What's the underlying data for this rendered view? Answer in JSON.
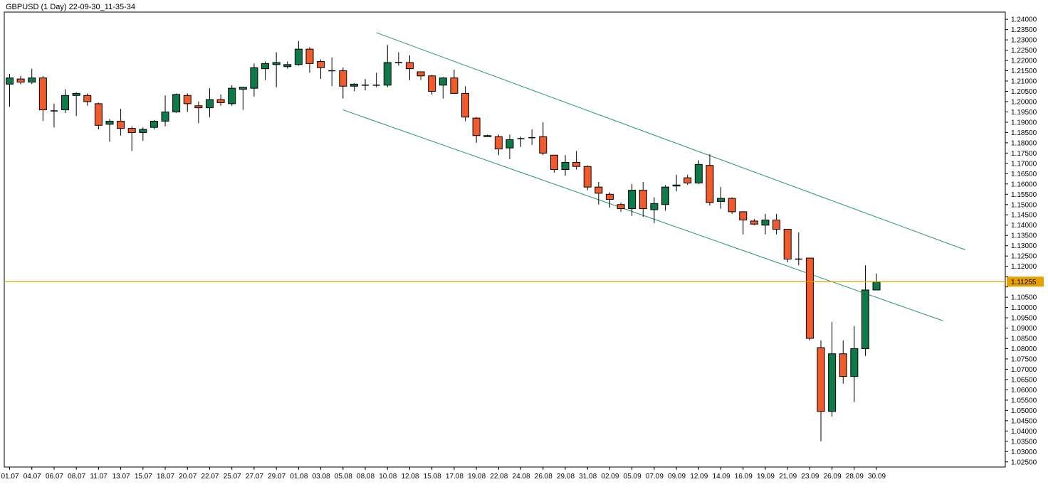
{
  "header": {
    "title": "GBPUSD (1 Day) 22-09-30_11-35-34"
  },
  "colors": {
    "background": "#ffffff",
    "frame": "#000000",
    "bull": "#0d7a4a",
    "bear": "#f15a2b",
    "channel": "#1f9a6a",
    "price_line": "#e6a100",
    "price_label_bg": "#e6a100"
  },
  "chart_data": {
    "type": "candlestick",
    "symbol": "GBPUSD",
    "timeframe": "1 Day",
    "ylim": [
      1.0225,
      1.2435
    ],
    "y_ticks": [
      "1.02500",
      "1.03000",
      "1.03500",
      "1.04000",
      "1.04500",
      "1.05000",
      "1.05500",
      "1.06000",
      "1.06500",
      "1.07000",
      "1.07500",
      "1.08000",
      "1.08500",
      "1.09000",
      "1.09500",
      "1.10000",
      "1.10500",
      "1.11000",
      "1.11500",
      "1.12000",
      "1.12500",
      "1.13000",
      "1.13500",
      "1.14000",
      "1.14500",
      "1.15000",
      "1.15500",
      "1.16000",
      "1.16500",
      "1.17000",
      "1.17500",
      "1.18000",
      "1.18500",
      "1.19000",
      "1.19500",
      "1.20000",
      "1.20500",
      "1.21000",
      "1.21500",
      "1.22000",
      "1.22500",
      "1.23000",
      "1.23500",
      "1.24000"
    ],
    "x_ticks": [
      {
        "index": 0,
        "label": "01.07"
      },
      {
        "index": 2,
        "label": "04.07"
      },
      {
        "index": 4,
        "label": "06.07"
      },
      {
        "index": 6,
        "label": "08.07"
      },
      {
        "index": 8,
        "label": "11.07"
      },
      {
        "index": 10,
        "label": "13.07"
      },
      {
        "index": 12,
        "label": "15.07"
      },
      {
        "index": 14,
        "label": "18.07"
      },
      {
        "index": 16,
        "label": "20.07"
      },
      {
        "index": 18,
        "label": "22.07"
      },
      {
        "index": 20,
        "label": "25.07"
      },
      {
        "index": 22,
        "label": "27.07"
      },
      {
        "index": 24,
        "label": "29.07"
      },
      {
        "index": 26,
        "label": "01.08"
      },
      {
        "index": 28,
        "label": "03.08"
      },
      {
        "index": 30,
        "label": "05.08"
      },
      {
        "index": 32,
        "label": "08.08"
      },
      {
        "index": 34,
        "label": "10.08"
      },
      {
        "index": 36,
        "label": "12.08"
      },
      {
        "index": 38,
        "label": "15.08"
      },
      {
        "index": 40,
        "label": "17.08"
      },
      {
        "index": 42,
        "label": "19.08"
      },
      {
        "index": 44,
        "label": "22.08"
      },
      {
        "index": 46,
        "label": "24.08"
      },
      {
        "index": 48,
        "label": "26.08"
      },
      {
        "index": 50,
        "label": "29.08"
      },
      {
        "index": 52,
        "label": "31.08"
      },
      {
        "index": 54,
        "label": "02.09"
      },
      {
        "index": 56,
        "label": "05.09"
      },
      {
        "index": 58,
        "label": "07.09"
      },
      {
        "index": 60,
        "label": "09.09"
      },
      {
        "index": 62,
        "label": "12.09"
      },
      {
        "index": 64,
        "label": "14.09"
      },
      {
        "index": 66,
        "label": "16.09"
      },
      {
        "index": 68,
        "label": "19.09"
      },
      {
        "index": 70,
        "label": "21.09"
      },
      {
        "index": 72,
        "label": "23.09"
      },
      {
        "index": 74,
        "label": "26.09"
      },
      {
        "index": 76,
        "label": "28.09"
      },
      {
        "index": 78,
        "label": "30.09"
      }
    ],
    "candles": [
      {
        "o": 1.2085,
        "h": 1.2135,
        "l": 1.1975,
        "c": 1.2115
      },
      {
        "o": 1.211,
        "h": 1.2125,
        "l": 1.2085,
        "c": 1.2095
      },
      {
        "o": 1.2095,
        "h": 1.216,
        "l": 1.2085,
        "c": 1.2115
      },
      {
        "o": 1.2115,
        "h": 1.2125,
        "l": 1.1905,
        "c": 1.196
      },
      {
        "o": 1.1955,
        "h": 1.199,
        "l": 1.1875,
        "c": 1.1955
      },
      {
        "o": 1.196,
        "h": 1.206,
        "l": 1.1945,
        "c": 1.203
      },
      {
        "o": 1.203,
        "h": 1.2045,
        "l": 1.193,
        "c": 1.204
      },
      {
        "o": 1.203,
        "h": 1.204,
        "l": 1.198,
        "c": 1.2
      },
      {
        "o": 1.199,
        "h": 1.1995,
        "l": 1.1865,
        "c": 1.1885
      },
      {
        "o": 1.189,
        "h": 1.1915,
        "l": 1.1805,
        "c": 1.1905
      },
      {
        "o": 1.1905,
        "h": 1.1965,
        "l": 1.1835,
        "c": 1.187
      },
      {
        "o": 1.187,
        "h": 1.188,
        "l": 1.176,
        "c": 1.185
      },
      {
        "o": 1.185,
        "h": 1.1875,
        "l": 1.181,
        "c": 1.1865
      },
      {
        "o": 1.1875,
        "h": 1.191,
        "l": 1.1865,
        "c": 1.1905
      },
      {
        "o": 1.1905,
        "h": 1.203,
        "l": 1.188,
        "c": 1.195
      },
      {
        "o": 1.195,
        "h": 1.204,
        "l": 1.1945,
        "c": 1.2035
      },
      {
        "o": 1.203,
        "h": 1.204,
        "l": 1.195,
        "c": 1.199
      },
      {
        "o": 1.198,
        "h": 1.2,
        "l": 1.1895,
        "c": 1.197
      },
      {
        "o": 1.197,
        "h": 1.2065,
        "l": 1.1925,
        "c": 1.201
      },
      {
        "o": 1.201,
        "h": 1.2035,
        "l": 1.198,
        "c": 1.1995
      },
      {
        "o": 1.199,
        "h": 1.208,
        "l": 1.198,
        "c": 1.2065
      },
      {
        "o": 1.206,
        "h": 1.207,
        "l": 1.196,
        "c": 1.207
      },
      {
        "o": 1.2065,
        "h": 1.2185,
        "l": 1.2025,
        "c": 1.2165
      },
      {
        "o": 1.216,
        "h": 1.2195,
        "l": 1.2105,
        "c": 1.2185
      },
      {
        "o": 1.218,
        "h": 1.224,
        "l": 1.207,
        "c": 1.219
      },
      {
        "o": 1.217,
        "h": 1.2195,
        "l": 1.216,
        "c": 1.218
      },
      {
        "o": 1.218,
        "h": 1.2295,
        "l": 1.2175,
        "c": 1.2255
      },
      {
        "o": 1.2255,
        "h": 1.2265,
        "l": 1.214,
        "c": 1.2185
      },
      {
        "o": 1.2195,
        "h": 1.2205,
        "l": 1.211,
        "c": 1.2165
      },
      {
        "o": 1.215,
        "h": 1.2215,
        "l": 1.2075,
        "c": 1.215
      },
      {
        "o": 1.215,
        "h": 1.2165,
        "l": 1.2015,
        "c": 1.2075
      },
      {
        "o": 1.2075,
        "h": 1.209,
        "l": 1.205,
        "c": 1.2085
      },
      {
        "o": 1.208,
        "h": 1.211,
        "l": 1.2055,
        "c": 1.208
      },
      {
        "o": 1.208,
        "h": 1.214,
        "l": 1.207,
        "c": 1.208
      },
      {
        "o": 1.208,
        "h": 1.2275,
        "l": 1.207,
        "c": 1.219
      },
      {
        "o": 1.219,
        "h": 1.224,
        "l": 1.2175,
        "c": 1.219
      },
      {
        "o": 1.219,
        "h": 1.2225,
        "l": 1.2105,
        "c": 1.216
      },
      {
        "o": 1.2145,
        "h": 1.2145,
        "l": 1.2105,
        "c": 1.2125
      },
      {
        "o": 1.2125,
        "h": 1.213,
        "l": 1.2035,
        "c": 1.205
      },
      {
        "o": 1.208,
        "h": 1.212,
        "l": 1.2015,
        "c": 1.2115
      },
      {
        "o": 1.2115,
        "h": 1.2155,
        "l": 1.2045,
        "c": 1.204
      },
      {
        "o": 1.204,
        "h": 1.2075,
        "l": 1.1905,
        "c": 1.1925
      },
      {
        "o": 1.192,
        "h": 1.1925,
        "l": 1.18,
        "c": 1.1835
      },
      {
        "o": 1.183,
        "h": 1.184,
        "l": 1.1835,
        "c": 1.1835
      },
      {
        "o": 1.183,
        "h": 1.184,
        "l": 1.174,
        "c": 1.177
      },
      {
        "o": 1.1775,
        "h": 1.184,
        "l": 1.172,
        "c": 1.1815
      },
      {
        "o": 1.182,
        "h": 1.183,
        "l": 1.178,
        "c": 1.182
      },
      {
        "o": 1.1825,
        "h": 1.1865,
        "l": 1.179,
        "c": 1.1825
      },
      {
        "o": 1.183,
        "h": 1.19,
        "l": 1.174,
        "c": 1.175
      },
      {
        "o": 1.174,
        "h": 1.174,
        "l": 1.1655,
        "c": 1.167
      },
      {
        "o": 1.167,
        "h": 1.174,
        "l": 1.164,
        "c": 1.1705
      },
      {
        "o": 1.1705,
        "h": 1.176,
        "l": 1.167,
        "c": 1.1685
      },
      {
        "o": 1.1685,
        "h": 1.169,
        "l": 1.157,
        "c": 1.1585
      },
      {
        "o": 1.1585,
        "h": 1.161,
        "l": 1.15,
        "c": 1.1555
      },
      {
        "o": 1.155,
        "h": 1.156,
        "l": 1.1485,
        "c": 1.1525
      },
      {
        "o": 1.15,
        "h": 1.151,
        "l": 1.1465,
        "c": 1.148
      },
      {
        "o": 1.148,
        "h": 1.16,
        "l": 1.1445,
        "c": 1.157
      },
      {
        "o": 1.157,
        "h": 1.161,
        "l": 1.144,
        "c": 1.148
      },
      {
        "o": 1.1475,
        "h": 1.1535,
        "l": 1.141,
        "c": 1.1505
      },
      {
        "o": 1.15,
        "h": 1.1595,
        "l": 1.147,
        "c": 1.1585
      },
      {
        "o": 1.159,
        "h": 1.1645,
        "l": 1.1565,
        "c": 1.1595
      },
      {
        "o": 1.163,
        "h": 1.1645,
        "l": 1.1595,
        "c": 1.1605
      },
      {
        "o": 1.1605,
        "h": 1.1715,
        "l": 1.16,
        "c": 1.1695
      },
      {
        "o": 1.169,
        "h": 1.1745,
        "l": 1.1495,
        "c": 1.151
      },
      {
        "o": 1.1515,
        "h": 1.1585,
        "l": 1.148,
        "c": 1.153
      },
      {
        "o": 1.153,
        "h": 1.1535,
        "l": 1.1455,
        "c": 1.1465
      },
      {
        "o": 1.1465,
        "h": 1.1465,
        "l": 1.1355,
        "c": 1.1425
      },
      {
        "o": 1.142,
        "h": 1.143,
        "l": 1.14,
        "c": 1.1405
      },
      {
        "o": 1.14,
        "h": 1.1455,
        "l": 1.1355,
        "c": 1.1425
      },
      {
        "o": 1.1425,
        "h": 1.1455,
        "l": 1.1355,
        "c": 1.138
      },
      {
        "o": 1.138,
        "h": 1.138,
        "l": 1.122,
        "c": 1.1235
      },
      {
        "o": 1.1235,
        "h": 1.1365,
        "l": 1.1205,
        "c": 1.1235
      },
      {
        "o": 1.124,
        "h": 1.124,
        "l": 1.084,
        "c": 1.085
      },
      {
        "o": 1.0805,
        "h": 1.084,
        "l": 1.035,
        "c": 1.0495
      },
      {
        "o": 1.0495,
        "h": 1.093,
        "l": 1.047,
        "c": 1.0775
      },
      {
        "o": 1.0775,
        "h": 1.084,
        "l": 1.063,
        "c": 1.0665
      },
      {
        "o": 1.0665,
        "h": 1.091,
        "l": 1.054,
        "c": 1.08
      },
      {
        "o": 1.08,
        "h": 1.1205,
        "l": 1.0765,
        "c": 1.1085
      },
      {
        "o": 1.1085,
        "h": 1.1165,
        "l": 1.1085,
        "c": 1.1125
      }
    ],
    "channel": {
      "upper": {
        "start": {
          "index": 33,
          "price": 1.2335
        },
        "end": {
          "index": 86,
          "price": 1.128
        }
      },
      "lower": {
        "start": {
          "index": 30,
          "price": 1.196
        },
        "end": {
          "index": 84,
          "price": 1.0935
        }
      }
    },
    "current_price": "1.11255"
  }
}
